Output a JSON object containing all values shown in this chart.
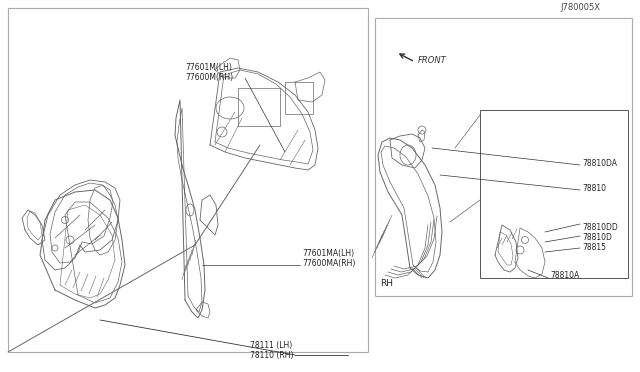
{
  "bg_color": "#ffffff",
  "lc": "#666666",
  "lc_dark": "#333333",
  "tl": 0.5,
  "ml": 0.8,
  "labels": {
    "78110_RH": "78110 (RH)",
    "78111_LH": "78111 (LH)",
    "77600MA_RH": "77600MA(RH)",
    "77601MA_LH": "77601MA(LH)",
    "77600M_RH": "77600M(RH)",
    "77601M_LH": "77601M(LH)",
    "RH": "RH",
    "78810A": "78810A",
    "78815": "78815",
    "78810D": "78810D",
    "78810DD": "78810DD",
    "78810": "78810",
    "78810DA": "78810DA",
    "FRONT": "FRONT",
    "diagram_id": "J780005X"
  }
}
